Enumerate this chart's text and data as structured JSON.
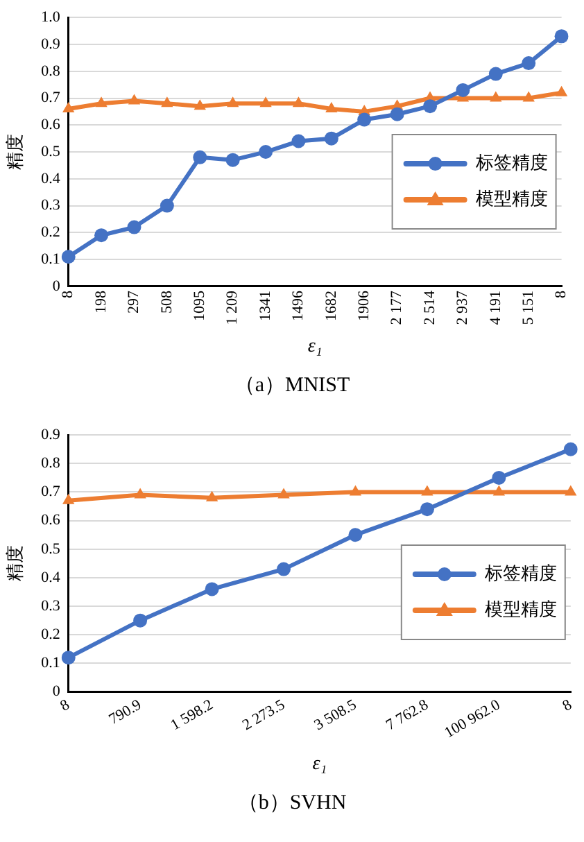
{
  "chart_data": [
    {
      "type": "line",
      "ylabel": "精度",
      "xlabel": "ε₁",
      "annotations": [
        "（a）MNIST"
      ],
      "categories": [
        "8",
        "198",
        "297",
        "508",
        "1095",
        "1 209",
        "1341",
        "1496",
        "1682",
        "1906",
        "2 177",
        "2 514",
        "2 937",
        "4 191",
        "5 151",
        "8"
      ],
      "series": [
        {
          "name": "标签精度",
          "color": "#4472c4",
          "marker": "circle",
          "values": [
            0.11,
            0.19,
            0.22,
            0.3,
            0.48,
            0.47,
            0.5,
            0.54,
            0.55,
            0.62,
            0.64,
            0.67,
            0.73,
            0.79,
            0.83,
            0.93
          ]
        },
        {
          "name": "模型精度",
          "color": "#ed7d31",
          "marker": "triangle",
          "values": [
            0.66,
            0.68,
            0.69,
            0.68,
            0.67,
            0.68,
            0.68,
            0.68,
            0.66,
            0.65,
            0.67,
            0.7,
            0.7,
            0.7,
            0.7,
            0.72
          ]
        }
      ],
      "ylim": [
        0,
        1
      ],
      "yticks": [
        0,
        0.1,
        0.2,
        0.3,
        0.4,
        0.5,
        0.6,
        0.7,
        0.8,
        0.9,
        {
          "value": 1,
          "label": "1.0"
        }
      ],
      "grid": "y",
      "legend": "right"
    },
    {
      "type": "line",
      "ylabel": "精度",
      "xlabel": "ε₁",
      "annotations": [
        "（b）SVHN"
      ],
      "categories": [
        "8",
        "790.9",
        "1 598.2",
        "2 273.5",
        "3 508.5",
        "7 762.8",
        "100 962.0",
        "8"
      ],
      "series": [
        {
          "name": "标签精度",
          "color": "#4472c4",
          "marker": "circle",
          "values": [
            0.12,
            0.25,
            0.36,
            0.43,
            0.55,
            0.64,
            0.75,
            0.85
          ]
        },
        {
          "name": "模型精度",
          "color": "#ed7d31",
          "marker": "triangle",
          "values": [
            0.67,
            0.69,
            0.68,
            0.69,
            0.7,
            0.7,
            0.7,
            0.7
          ]
        }
      ],
      "ylim": [
        0,
        0.9
      ],
      "yticks": [
        0,
        0.1,
        0.2,
        0.3,
        0.4,
        0.5,
        0.6,
        0.7,
        0.8,
        0.9
      ],
      "grid": "y",
      "legend": "right"
    }
  ]
}
